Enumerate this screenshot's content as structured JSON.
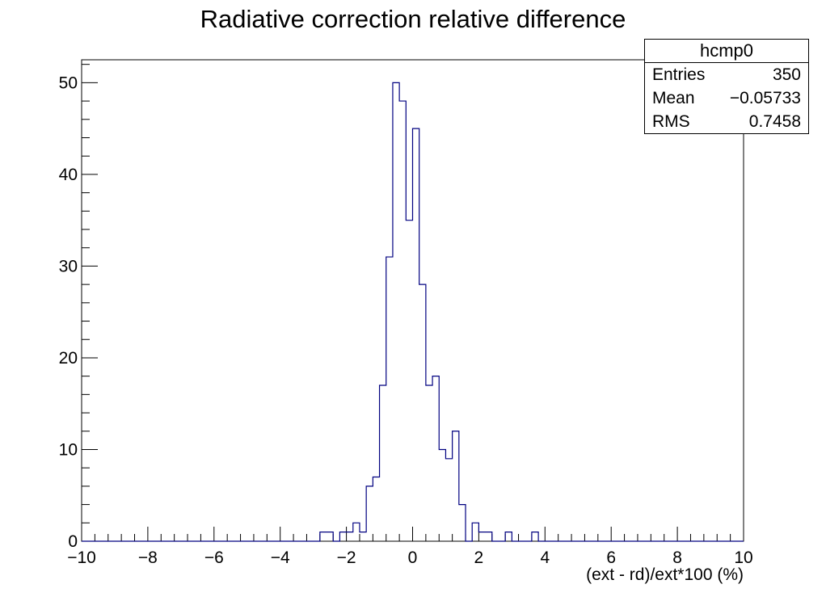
{
  "chart_data": {
    "type": "histogram",
    "title": "Radiative correction relative difference",
    "xlabel": "(ext - rd)/ext*100 (%)",
    "ylabel": "",
    "xlim": [
      -10,
      10
    ],
    "ylim": [
      0,
      52.5
    ],
    "bin_width": 0.2,
    "x_ticks": [
      "−10",
      "−8",
      "−6",
      "−4",
      "−2",
      "0",
      "2",
      "4",
      "6",
      "8",
      "10"
    ],
    "y_ticks": [
      "0",
      "10",
      "20",
      "30",
      "40",
      "50"
    ],
    "line_color": "#000080",
    "grid": false,
    "bins": [
      {
        "x0": -2.8,
        "count": 1
      },
      {
        "x0": -2.6,
        "count": 1
      },
      {
        "x0": -2.2,
        "count": 1
      },
      {
        "x0": -2.0,
        "count": 1
      },
      {
        "x0": -1.8,
        "count": 2
      },
      {
        "x0": -1.6,
        "count": 1
      },
      {
        "x0": -1.4,
        "count": 6
      },
      {
        "x0": -1.2,
        "count": 7
      },
      {
        "x0": -1.0,
        "count": 17
      },
      {
        "x0": -0.8,
        "count": 31
      },
      {
        "x0": -0.6,
        "count": 50
      },
      {
        "x0": -0.4,
        "count": 48
      },
      {
        "x0": -0.2,
        "count": 35
      },
      {
        "x0": 0.0,
        "count": 45
      },
      {
        "x0": 0.2,
        "count": 28
      },
      {
        "x0": 0.4,
        "count": 17
      },
      {
        "x0": 0.6,
        "count": 18
      },
      {
        "x0": 0.8,
        "count": 10
      },
      {
        "x0": 1.0,
        "count": 9
      },
      {
        "x0": 1.2,
        "count": 12
      },
      {
        "x0": 1.4,
        "count": 4
      },
      {
        "x0": 1.8,
        "count": 2
      },
      {
        "x0": 2.0,
        "count": 1
      },
      {
        "x0": 2.2,
        "count": 1
      },
      {
        "x0": 2.8,
        "count": 1
      },
      {
        "x0": 3.6,
        "count": 1
      }
    ],
    "stats_box": {
      "name": "hcmp0",
      "rows": [
        {
          "key": "Entries",
          "value": "350"
        },
        {
          "key": "Mean",
          "value": "−0.05733"
        },
        {
          "key": "RMS",
          "value": "0.7458"
        }
      ]
    }
  }
}
